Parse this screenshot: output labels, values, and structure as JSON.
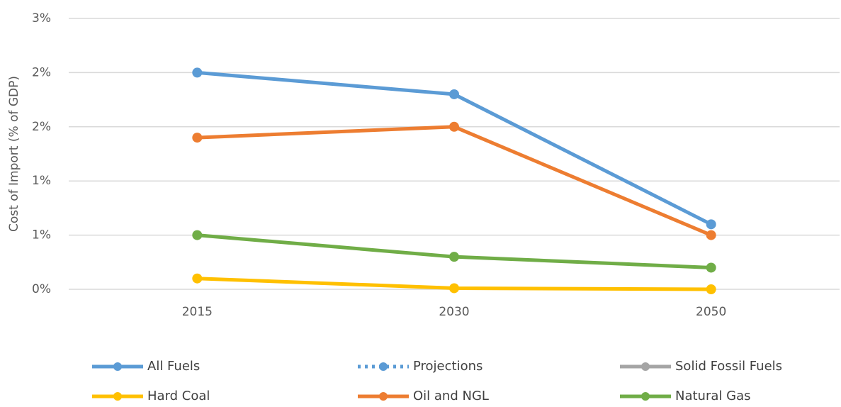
{
  "chart_data": {
    "type": "line",
    "y_label": "Cost of Import (% of GDP)",
    "categories": [
      "2015",
      "2030",
      "2050"
    ],
    "ylim": [
      0,
      2.5
    ],
    "yticks": [
      {
        "value": 0,
        "label": "0%"
      },
      {
        "value": 0.5,
        "label": "1%"
      },
      {
        "value": 1,
        "label": "1%"
      },
      {
        "value": 1.5,
        "label": "2%"
      },
      {
        "value": 2,
        "label": "2%"
      },
      {
        "value": 2.5,
        "label": "3%"
      }
    ],
    "grid": true,
    "legend": "bottom",
    "series": [
      {
        "name": "All Fuels",
        "color": "#5b9bd5",
        "values": [
          2.0,
          1.8,
          0.6
        ]
      },
      {
        "name": "Projections",
        "color": "#5b9bd5",
        "dash": true,
        "values": [
          null,
          null,
          null
        ]
      },
      {
        "name": "Solid Fossil Fuels",
        "color": "#a5a5a5",
        "values": [
          null,
          null,
          null
        ]
      },
      {
        "name": "Hard Coal",
        "color": "#ffc000",
        "values": [
          0.1,
          0.01,
          0.0
        ]
      },
      {
        "name": "Oil and NGL",
        "color": "#ed7d31",
        "values": [
          1.4,
          1.5,
          0.5
        ]
      },
      {
        "name": "Natural Gas",
        "color": "#70ad47",
        "values": [
          0.5,
          0.3,
          0.2
        ]
      }
    ]
  }
}
